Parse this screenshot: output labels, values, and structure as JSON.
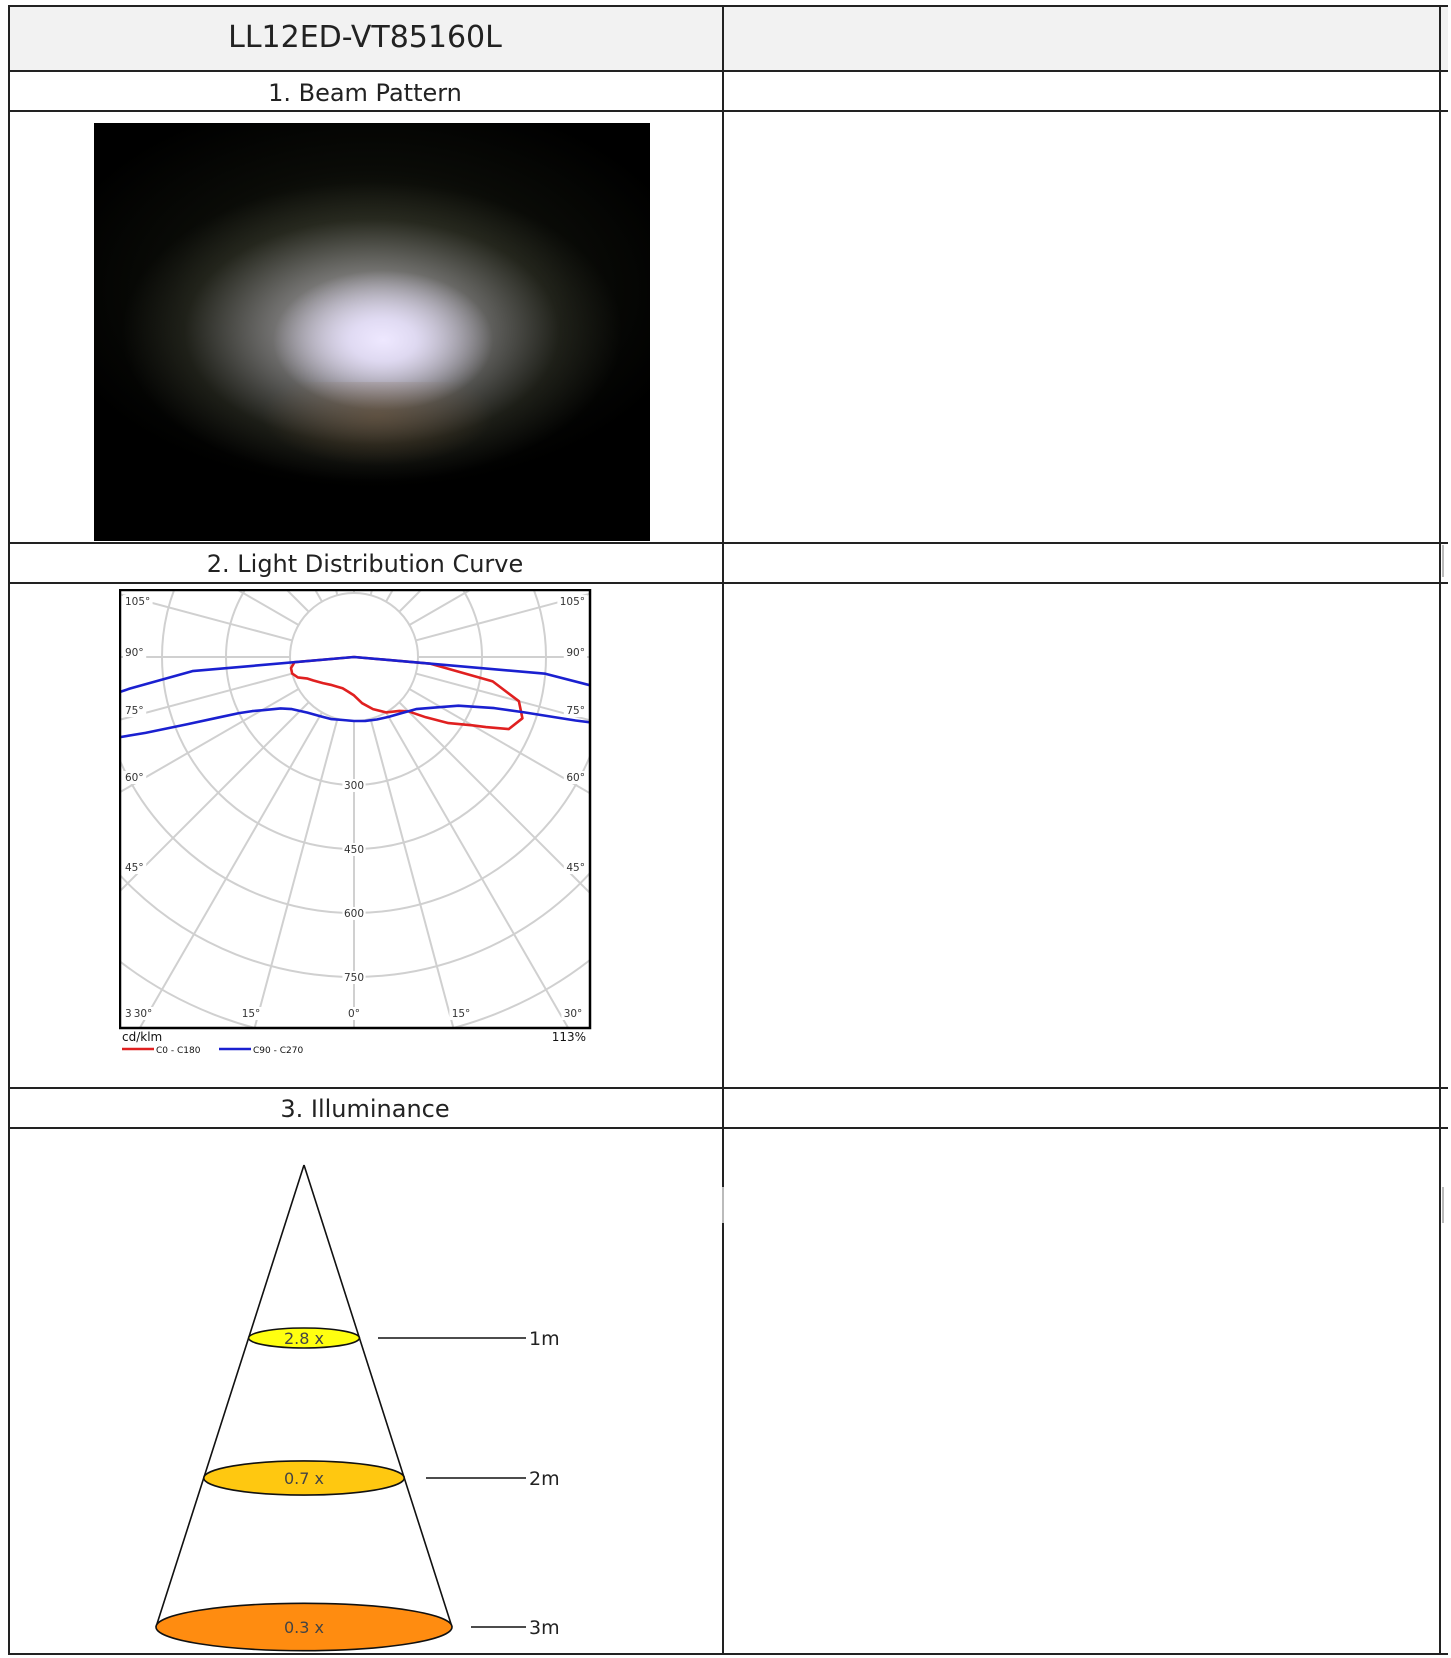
{
  "header": {
    "title": "LL12ED-VT85160L",
    "right": ""
  },
  "sections": {
    "beam": {
      "title": "1. Beam Pattern"
    },
    "ldc": {
      "title": "2. Light Distribution Curve"
    },
    "illuminance": {
      "title": "3. Illuminance"
    }
  },
  "chart_data": [
    {
      "type": "polar",
      "unit": "cd/klm",
      "efficiency": "113%",
      "radial_ticks": [
        300,
        450,
        600,
        750
      ],
      "angle_labels_left": [
        "105°",
        "90°",
        "75°",
        "60°",
        "45°",
        "30°"
      ],
      "angle_labels_right": [
        "105°",
        "90°",
        "75°",
        "60°",
        "45°",
        "30°"
      ],
      "bottom_labels": [
        "30°",
        "15°",
        "0°",
        "15°",
        "30°"
      ],
      "series": [
        {
          "name": "C0 - C180",
          "color": "#e02020",
          "angles": [
            -90,
            -85,
            -80,
            -75,
            -70,
            -65,
            -60,
            -50,
            -40,
            -30,
            -20,
            -10,
            0,
            10,
            20,
            30,
            40,
            45,
            50,
            55,
            60,
            62,
            65,
            70,
            75,
            80,
            85,
            90
          ],
          "values": [
            0,
            140,
            150,
            150,
            140,
            120,
            110,
            95,
            85,
            80,
            78,
            82,
            90,
            110,
            130,
            150,
            165,
            180,
            220,
            270,
            320,
            350,
            400,
            420,
            400,
            330,
            180,
            0
          ]
        },
        {
          "name": "C90 - C270",
          "color": "#1a20d0",
          "angles": [
            -90,
            -85,
            -82,
            -80,
            -78,
            -76,
            -75,
            -74,
            -72,
            -70,
            -68,
            -66,
            -64,
            -62,
            -60,
            -55,
            -50,
            -40,
            -30,
            -20,
            -10,
            0,
            10,
            20,
            30,
            40,
            50,
            60,
            65,
            70,
            72,
            74,
            76,
            78,
            80,
            85,
            90
          ],
          "values": [
            0,
            380,
            530,
            650,
            760,
            880,
            940,
            800,
            640,
            520,
            420,
            350,
            300,
            270,
            250,
            210,
            190,
            170,
            160,
            155,
            150,
            150,
            152,
            156,
            162,
            172,
            190,
            235,
            270,
            350,
            420,
            540,
            700,
            860,
            950,
            450,
            0
          ]
        }
      ]
    },
    {
      "type": "cone",
      "levels": [
        {
          "distance": "1m",
          "factor": "2.8 x",
          "color": "#ffff10"
        },
        {
          "distance": "2m",
          "factor": "0.7 x",
          "color": "#ffc810"
        },
        {
          "distance": "3m",
          "factor": "0.3 x",
          "color": "#ff8c10"
        }
      ]
    }
  ]
}
